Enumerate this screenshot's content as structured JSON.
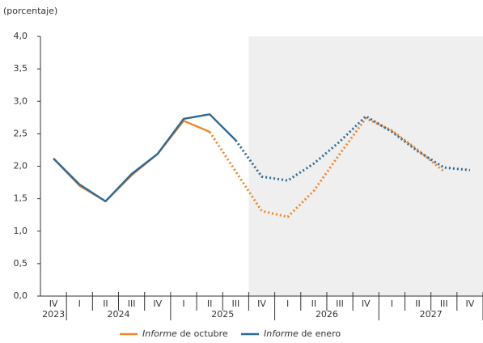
{
  "chart_data": {
    "type": "line",
    "y_label": "(porcentaje)",
    "categories": [
      "IV",
      "I",
      "II",
      "III",
      "IV",
      "I",
      "II",
      "III",
      "IV",
      "I",
      "II",
      "III",
      "IV",
      "I",
      "II",
      "III",
      "IV"
    ],
    "years": [
      {
        "label": "2023",
        "from": 0,
        "to": 0
      },
      {
        "label": "2024",
        "from": 1,
        "to": 4
      },
      {
        "label": "2025",
        "from": 5,
        "to": 8
      },
      {
        "label": "2026",
        "from": 9,
        "to": 12
      },
      {
        "label": "2027",
        "from": 13,
        "to": 16
      }
    ],
    "series": [
      {
        "name": "Informe de octubre",
        "color": "#f0862d",
        "dotted_from": 6,
        "values": [
          2.12,
          1.7,
          1.46,
          1.86,
          2.19,
          2.7,
          2.53,
          1.92,
          1.31,
          1.22,
          1.62,
          2.19,
          2.74,
          2.55,
          2.25,
          1.92,
          null
        ]
      },
      {
        "name": "Informe de enero",
        "color": "#2e6a96",
        "dotted_from": 7,
        "values": [
          2.12,
          1.72,
          1.46,
          1.88,
          2.19,
          2.73,
          2.8,
          2.4,
          1.84,
          1.78,
          2.04,
          2.38,
          2.77,
          2.53,
          2.23,
          1.98,
          1.94
        ]
      }
    ],
    "shaded_from": 8,
    "ylim": [
      0,
      4
    ],
    "yticks": [
      {
        "value": 0,
        "label": "0,0"
      },
      {
        "value": 0.5,
        "label": "0,5"
      },
      {
        "value": 1,
        "label": "1,0"
      },
      {
        "value": 1.5,
        "label": "1,5"
      },
      {
        "value": 2,
        "label": "2,0"
      },
      {
        "value": 2.5,
        "label": "2,5"
      },
      {
        "value": 3,
        "label": "3,0"
      },
      {
        "value": 3.5,
        "label": "3,5"
      },
      {
        "value": 4,
        "label": "4,0"
      }
    ]
  }
}
